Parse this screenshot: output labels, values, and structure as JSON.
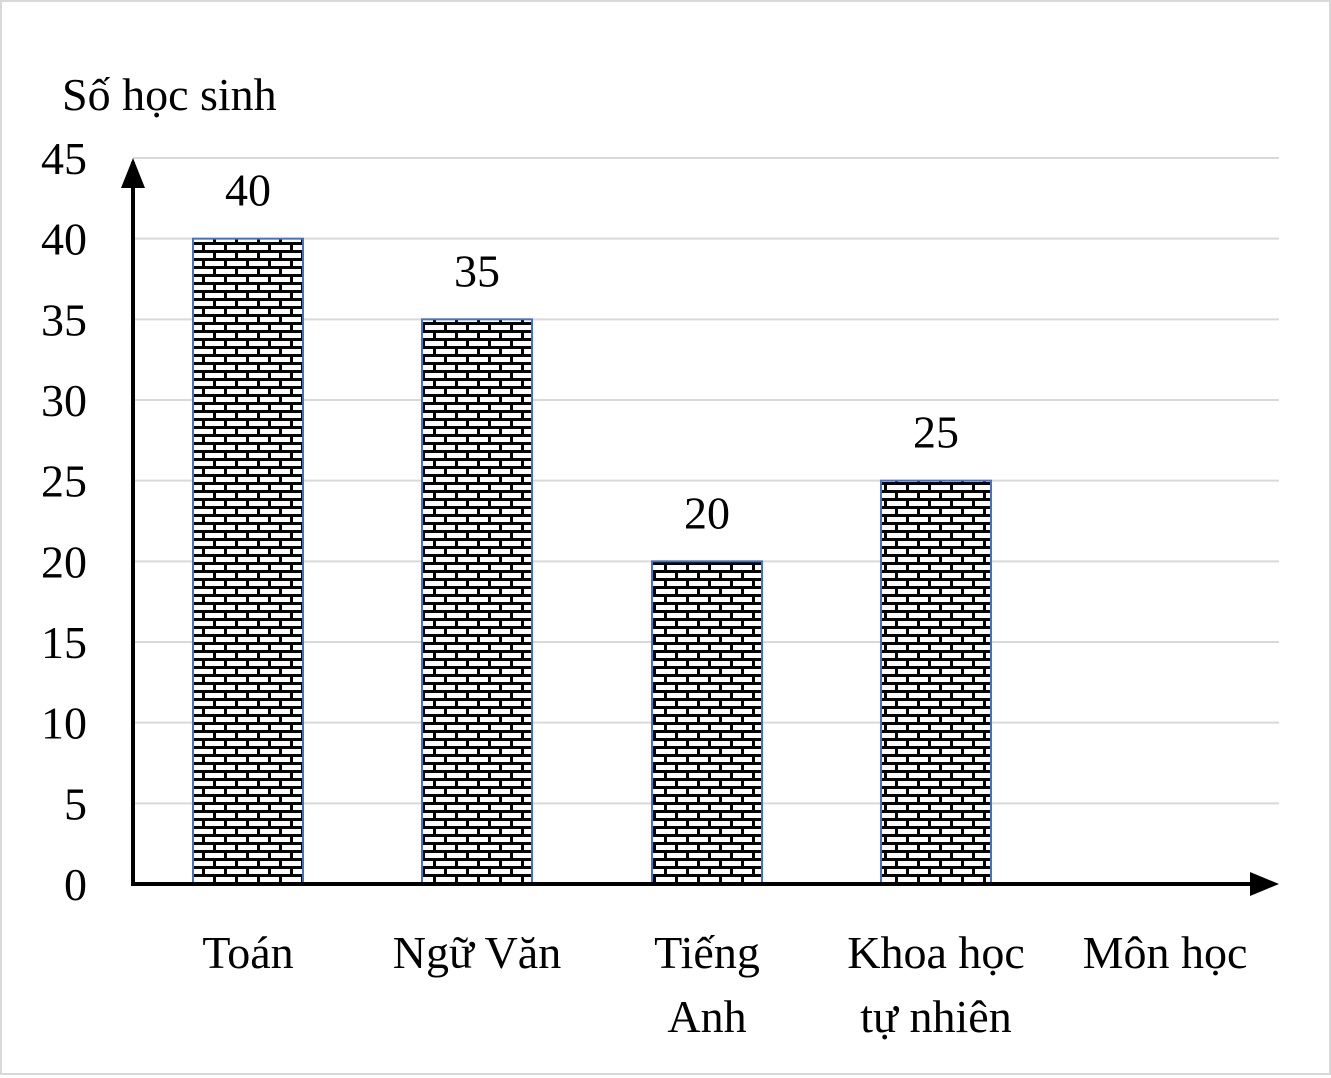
{
  "chart_data": {
    "type": "bar",
    "ylabel": "Số học sinh",
    "xlabel": "Môn học",
    "categories": [
      [
        "Toán"
      ],
      [
        "Ngữ Văn"
      ],
      [
        "Tiếng",
        "Anh"
      ],
      [
        "Khoa học",
        "tự nhiên"
      ]
    ],
    "values": [
      40,
      35,
      20,
      25
    ],
    "ylim": [
      0,
      45
    ],
    "yticks": [
      "0",
      "5",
      "10",
      "15",
      "20",
      "25",
      "30",
      "35",
      "40",
      "45"
    ],
    "grid": true,
    "bar_pattern": "brick",
    "colors": {
      "bar_outline": "#4472c4",
      "grid": "#d9d9d9",
      "axis": "#000000"
    }
  }
}
